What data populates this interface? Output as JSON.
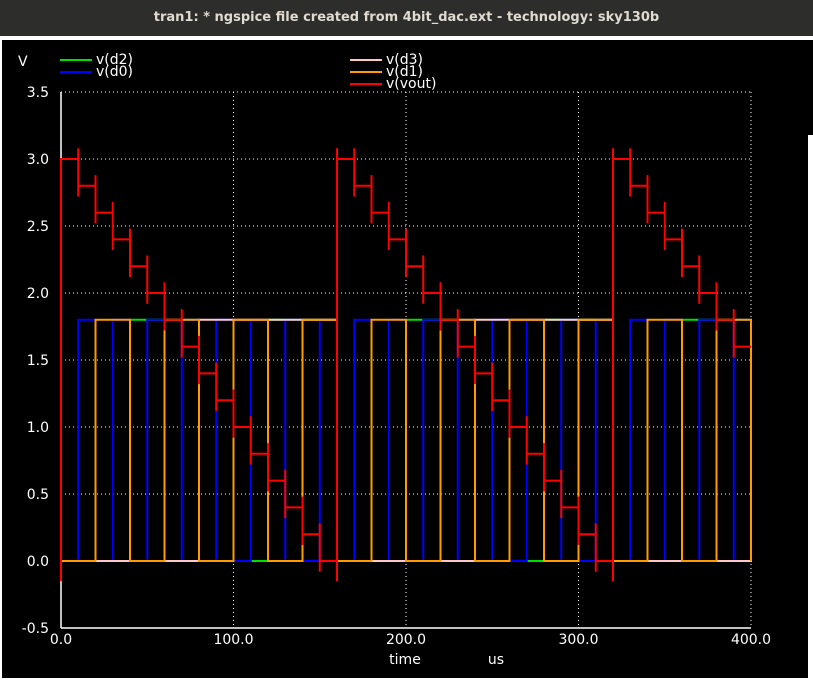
{
  "window": {
    "title": "tran1: * ngspice file created from 4bit_dac.ext - technology: sky130b"
  },
  "chart_data": {
    "type": "line",
    "title": "",
    "ylabel": "V",
    "xlabel": "time",
    "xunit": "us",
    "xlim": [
      0,
      400
    ],
    "ylim": [
      -0.5,
      3.5
    ],
    "xticks": [
      0,
      100,
      200,
      300,
      400
    ],
    "xtick_labels": [
      "0.0",
      "100.0",
      "200.0",
      "300.0",
      "400.0"
    ],
    "yticks": [
      -0.5,
      0.0,
      0.5,
      1.0,
      1.5,
      2.0,
      2.5,
      3.0,
      3.5
    ],
    "ytick_labels": [
      "-0.5",
      "0.0",
      "0.5",
      "1.0",
      "1.5",
      "2.0",
      "2.5",
      "3.0",
      "3.5"
    ],
    "grid": true,
    "legend_position": "top",
    "background": "#000000",
    "series": [
      {
        "name": "v(d2)",
        "color": "#00e000",
        "kind": "square",
        "period": 80,
        "first_edge": 40,
        "start_level": 0,
        "low": 0,
        "high": 1.8
      },
      {
        "name": "v(d0)",
        "color": "#0000ff",
        "kind": "square",
        "period": 20,
        "first_edge": 10,
        "start_level": 0,
        "low": 0,
        "high": 1.8
      },
      {
        "name": "v(d3)",
        "color": "#ffc8c8",
        "kind": "square",
        "period": 160,
        "first_edge": 80,
        "start_level": 0,
        "low": 0,
        "high": 1.8
      },
      {
        "name": "v(d1)",
        "color": "#ff9b00",
        "kind": "square",
        "period": 40,
        "first_edge": 20,
        "start_level": 0,
        "low": 0,
        "high": 1.8
      },
      {
        "name": "v(vout)",
        "color": "#ff0000",
        "kind": "staircase",
        "period": 160,
        "step": 10,
        "levels": [
          3.0,
          2.8,
          2.6,
          2.4,
          2.2,
          2.0,
          1.8,
          1.6,
          1.4,
          1.2,
          1.0,
          0.8,
          0.6,
          0.4,
          0.2,
          0.0
        ],
        "overshoot": 0.08,
        "reset_undershoot": -0.15
      }
    ]
  }
}
